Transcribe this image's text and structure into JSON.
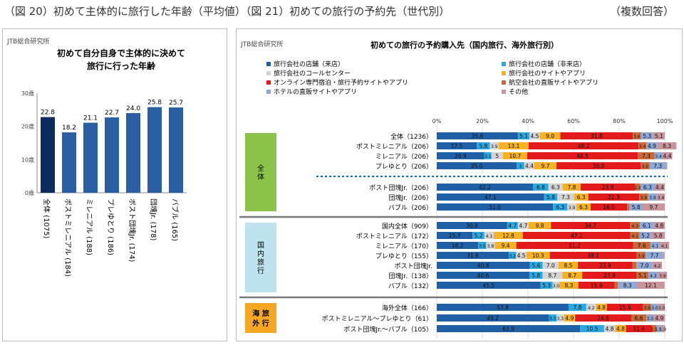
{
  "header": {
    "left": "（図 20）初めて主体的に旅行した年齢（平均値）（図 21）初めての旅行の予約先（世代別）",
    "right": "（複数回答）"
  },
  "left_panel": {
    "source": "JTB総合研究所",
    "title_line1": "初めて自分自身で主体的に決めて",
    "title_line2": "旅行に行った年齢"
  },
  "right_panel": {
    "source": "JTB総合研究所",
    "title": "初めての旅行の予約購入先（国内旅行、海外旅行別）",
    "legend": [
      {
        "label": "旅行会社の店舗（来店）",
        "color": "#1f5fa6"
      },
      {
        "label": "旅行会社の店舗（非来店）",
        "color": "#2aa9e0"
      },
      {
        "label": "旅行会社のコールセンター",
        "color": "#d4d4d4"
      },
      {
        "label": "旅行会社のサイトやアプリ",
        "color": "#f5b224"
      },
      {
        "label": "オンライン専門宿泊・旅行予約サイトやアプリ",
        "color": "#e31a1c"
      },
      {
        "label": "航空会社の直販サイトやアプリ",
        "color": "#c8693a"
      },
      {
        "label": "ホテルの直販サイトやアプリ",
        "color": "#8fa9d6"
      },
      {
        "label": "その他",
        "color": "#c9969e"
      }
    ],
    "groups": [
      {
        "label": "全体",
        "color": "#8bc34a",
        "text_color": "#000"
      },
      {
        "label": "国内旅行",
        "color": "#bfe3ee",
        "text_color": "#000"
      },
      {
        "label": "海外旅行",
        "color": "#f5a623",
        "text_color": "#000"
      }
    ]
  },
  "chart_data": [
    {
      "type": "bar",
      "title": "初めて自分自身で主体的に決めて旅行に行った年齢",
      "categories": [
        "全体 (1075)",
        "ポストミレニアル (184)",
        "ミレニアル (188)",
        "プレゆとり (186)",
        "ポスト団塊Jr. (174)",
        "団塊Jr. (178)",
        "バブル (165)"
      ],
      "values": [
        22.8,
        18.2,
        21.1,
        22.7,
        24.0,
        25.8,
        25.7
      ],
      "y_ticks": [
        "0歳",
        "10歳",
        "20歳",
        "30歳"
      ],
      "ylim": [
        0,
        30
      ],
      "colors": [
        "#0d2b5e",
        "#2a5fa3",
        "#2a5fa3",
        "#2a5fa3",
        "#2a5fa3",
        "#2a5fa3",
        "#2a5fa3"
      ],
      "grid": false
    },
    {
      "type": "bar",
      "orientation": "horizontal-stacked",
      "title": "初めての旅行の予約購入先（国内旅行、海外旅行別）",
      "x_ticks": [
        "0%",
        "20%",
        "40%",
        "60%",
        "80%",
        "100%"
      ],
      "xlim": [
        0,
        100
      ],
      "series_names": [
        "旅行会社の店舗（来店）",
        "旅行会社の店舗（非来店）",
        "旅行会社のコールセンター",
        "旅行会社のサイトやアプリ",
        "オンライン専門宿泊・旅行予約サイトやアプリ",
        "航空会社の直販サイトやアプリ",
        "ホテルの直販サイトやアプリ",
        "その他"
      ],
      "rows": [
        {
          "label": "全体（1236）",
          "group": 0,
          "values": [
            35.6,
            5.1,
            4.5,
            9.0,
            31.8,
            3.6,
            5.3,
            5.1
          ],
          "labels": [
            "35.6",
            "5.1",
            "4.5",
            "9.0",
            "31.8",
            "3.6",
            "5.3",
            "5.1"
          ]
        },
        {
          "label": "ポストミレニアル（206）",
          "group": 0,
          "values": [
            17.5,
            5.8,
            3.9,
            13.1,
            48.2,
            3.4,
            4.9,
            8.3
          ],
          "labels": [
            "17.5",
            "5.8",
            "3.9",
            "13.1",
            "48.2",
            "3.4",
            "4.9",
            "8.3"
          ]
        },
        {
          "label": "ミレニアル（206）",
          "group": 0,
          "values": [
            20.9,
            3.1,
            5.0,
            10.7,
            48.5,
            7.3,
            3.4,
            4.4
          ],
          "labels": [
            "20.9",
            "3.1",
            "5",
            "10.7",
            "48.5",
            "7.3",
            "3.4",
            "4.4"
          ]
        },
        {
          "label": "プレゆとり（206）",
          "group": 0,
          "values": [
            35.0,
            3.4,
            4.4,
            9.7,
            36.9,
            3.9,
            7.3,
            0.5
          ],
          "labels": [
            "35.0",
            "3",
            "4.4",
            "9.7",
            "36.9",
            "3.9",
            "7.3",
            "0.5"
          ]
        },
        {
          "label": "ポスト団塊Jr.（206）",
          "group": 0,
          "values": [
            42.2,
            6.8,
            6.3,
            7.8,
            23.8,
            2.4,
            6.3,
            4.4
          ],
          "labels": [
            "42.2",
            "6.8",
            "6.3",
            "7.8",
            "23.8",
            "2.4",
            "6.3",
            "4.4"
          ]
        },
        {
          "label": "団塊Jr.（206）",
          "group": 0,
          "values": [
            47.1,
            5.8,
            7.3,
            6.3,
            22.3,
            3.9,
            3.9,
            3.4
          ],
          "labels": [
            "47.1",
            "5.8",
            "7.3",
            "6.3",
            "22.3",
            "3.9",
            "3.9",
            "3.4"
          ]
        },
        {
          "label": "バブル（206）",
          "group": 0,
          "values": [
            51.0,
            6.3,
            3.9,
            6.3,
            16.0,
            1.0,
            5.8,
            9.7
          ],
          "labels": [
            "51.0",
            "6.3",
            "3.9",
            "6.3",
            "16.0",
            "1.0",
            "5.8",
            "9.7"
          ]
        },
        {
          "label": "国内全体（909）",
          "group": 1,
          "values": [
            30.9,
            4.7,
            4.7,
            9.8,
            34.7,
            4.3,
            6.1,
            4.8
          ],
          "labels": [
            "30.9",
            "4.7",
            "4.7",
            "9.8",
            "34.7",
            "4.3",
            "6.1",
            "4.8"
          ]
        },
        {
          "label": "ポストミレニアル（172）",
          "group": 1,
          "values": [
            15.7,
            5.2,
            4.1,
            12.8,
            47.1,
            4.1,
            5.2,
            5.8
          ],
          "labels": [
            "15.7",
            "5.2",
            "4.1",
            "12.8",
            "47.1",
            "4.1",
            "5.2",
            "5.8"
          ]
        },
        {
          "label": "ミレニアル（170）",
          "group": 1,
          "values": [
            18.2,
            3.5,
            3.8,
            9.4,
            51.2,
            7.6,
            4.1,
            4.1
          ],
          "labels": [
            "18.2",
            "3.5",
            "3.8",
            "9.4",
            "51.2",
            "7.6",
            "4.1",
            "4.1"
          ]
        },
        {
          "label": "プレゆとり（155）",
          "group": 1,
          "values": [
            31.6,
            3.2,
            4.5,
            10.3,
            38.1,
            3.9,
            7.7,
            0.6
          ],
          "labels": [
            "31.6",
            "3.2",
            "4.5",
            "10.3",
            "38.1",
            "3.9",
            "7.7",
            "0.6"
          ]
        },
        {
          "label": "ポスト団塊Jr.",
          "group": 1,
          "values": [
            40.8,
            5.6,
            7.0,
            8.5,
            23.9,
            1.8,
            7.0,
            4.2
          ],
          "labels": [
            "40.8",
            "5.6",
            "7.0",
            "8.5",
            "23.9",
            "1.8",
            "7.0",
            "4.2"
          ]
        },
        {
          "label": "団塊Jr.（138）",
          "group": 1,
          "values": [
            40.6,
            5.8,
            8.7,
            8.7,
            23.9,
            5.1,
            4.3,
            3.9
          ],
          "labels": [
            "40.6",
            "5.8",
            "8.7",
            "8.7",
            "23.9",
            "5.1",
            "4.3",
            "3.9"
          ]
        },
        {
          "label": "バブル（132）",
          "group": 1,
          "values": [
            45.5,
            5.3,
            3.0,
            8.3,
            15.9,
            1.5,
            8.3,
            12.1
          ],
          "labels": [
            "45.5",
            "5.3",
            "3.0",
            "8.3",
            "15.9",
            "1.5",
            "8.3",
            "12.1"
          ]
        },
        {
          "label": "海外全体（166）",
          "group": 2,
          "values": [
            57.8,
            7.8,
            4.2,
            4.8,
            15.9,
            3.6,
            3.0,
            3.0
          ],
          "labels": [
            "57.8",
            "7.8",
            "4.2",
            "4.8",
            "15.9",
            "3.6",
            "3.0",
            "3.0"
          ]
        },
        {
          "label": "ポストミレニアル～プレゆとり（61）",
          "group": 2,
          "values": [
            49.2,
            3.3,
            3.3,
            4.9,
            24.6,
            6.6,
            3.3,
            4.9
          ],
          "labels": [
            "49.2",
            "3.3",
            "3.3",
            "4.9",
            "24.6",
            "6.6",
            "3.3",
            "4.9"
          ]
        },
        {
          "label": "ポスト団塊Jr.～バブル（105）",
          "group": 2,
          "values": [
            62.9,
            10.5,
            4.8,
            4.8,
            11.4,
            1.9,
            1.9,
            1.9
          ],
          "labels": [
            "62.9",
            "10.5",
            "4.8",
            "4.8",
            "11.4",
            "1.9",
            "1.9",
            "1.9"
          ]
        }
      ]
    }
  ]
}
